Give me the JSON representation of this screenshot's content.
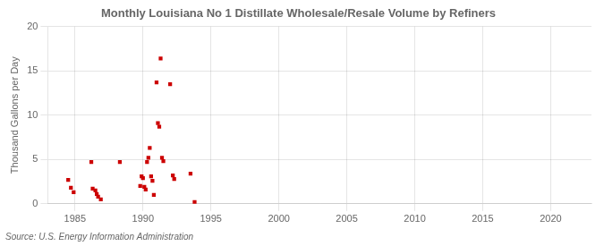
{
  "chart_data": {
    "type": "scatter",
    "title": "Monthly Louisiana No 1 Distillate Wholesale/Resale Volume by Refiners",
    "ylabel": "Thousand Gallons per Day",
    "annotation": "Source: U.S. Energy Information Administration",
    "x": [
      1984.5,
      1984.7,
      1984.9,
      1986.2,
      1986.3,
      1986.5,
      1986.6,
      1986.7,
      1986.9,
      1988.3,
      1989.8,
      1989.9,
      1990.0,
      1990.1,
      1990.2,
      1990.3,
      1990.4,
      1990.5,
      1990.6,
      1990.7,
      1990.8,
      1991.0,
      1991.1,
      1991.2,
      1991.3,
      1991.4,
      1991.5,
      1992.0,
      1992.2,
      1992.3,
      1993.5,
      1993.8
    ],
    "values": [
      2.7,
      1.8,
      1.3,
      4.7,
      1.7,
      1.5,
      1.1,
      0.8,
      0.5,
      4.7,
      2.0,
      3.1,
      2.9,
      1.9,
      1.6,
      4.7,
      5.2,
      6.3,
      3.1,
      2.6,
      1.0,
      13.7,
      9.1,
      8.7,
      16.4,
      5.2,
      4.8,
      13.5,
      3.2,
      2.8,
      3.4,
      0.2
    ],
    "color": "#cc0000",
    "marker": "square",
    "xlim": [
      1983,
      2023
    ],
    "xticks": [
      1985,
      1990,
      1995,
      2000,
      2005,
      2010,
      2015,
      2020
    ],
    "ylim": [
      0,
      20
    ],
    "yticks": [
      0,
      5,
      10,
      15,
      20
    ],
    "grid": true
  }
}
